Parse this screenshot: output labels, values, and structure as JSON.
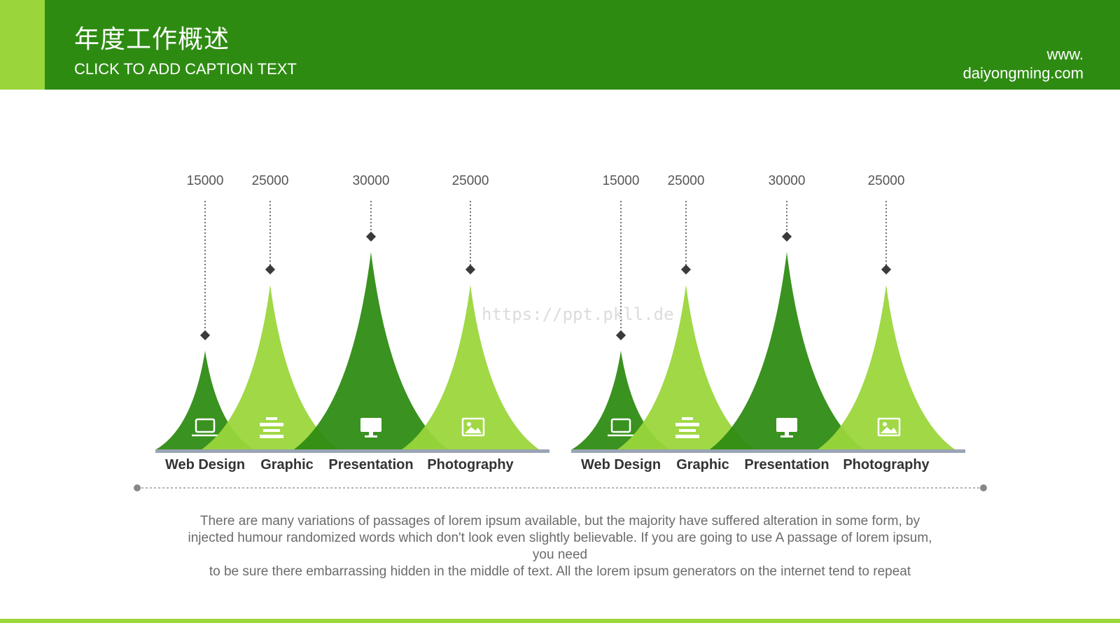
{
  "header": {
    "title": "年度工作概述",
    "subtitle": "CLICK TO ADD CAPTION TEXT",
    "site_line1": "www.",
    "site_line2": "daiyongming.com"
  },
  "colors": {
    "dark_green": "#2e8b12",
    "light_green": "#9ad63a",
    "baseline": "#9aa4b4",
    "marker": "#3a3a3a"
  },
  "watermark": "https://ppt.pkll.de",
  "chart_data": [
    {
      "type": "bar",
      "categories": [
        "Web Design",
        "Graphic",
        "Presentation",
        "Photography"
      ],
      "values": [
        15000,
        25000,
        30000,
        25000
      ],
      "icons": [
        "laptop-icon",
        "align-center-icon",
        "monitor-icon",
        "image-icon"
      ],
      "colors": [
        "#2e8b12",
        "#9ad63a",
        "#2e8b12",
        "#9ad63a"
      ]
    },
    {
      "type": "bar",
      "categories": [
        "Web Design",
        "Graphic",
        "Presentation",
        "Photography"
      ],
      "values": [
        15000,
        25000,
        30000,
        25000
      ],
      "icons": [
        "laptop-icon",
        "align-center-icon",
        "monitor-icon",
        "image-icon"
      ],
      "colors": [
        "#2e8b12",
        "#9ad63a",
        "#2e8b12",
        "#9ad63a"
      ]
    }
  ],
  "body": {
    "line1": "There are many variations of passages of lorem ipsum available, but the majority have suffered alteration in some form, by",
    "line2": "injected humour randomized words which don't look even slightly believable. If you are going to use A passage of lorem ipsum,",
    "line3": "you need",
    "line4": "to be sure there embarrassing hidden in the middle of text. All the lorem ipsum generators on the internet tend to repeat"
  }
}
